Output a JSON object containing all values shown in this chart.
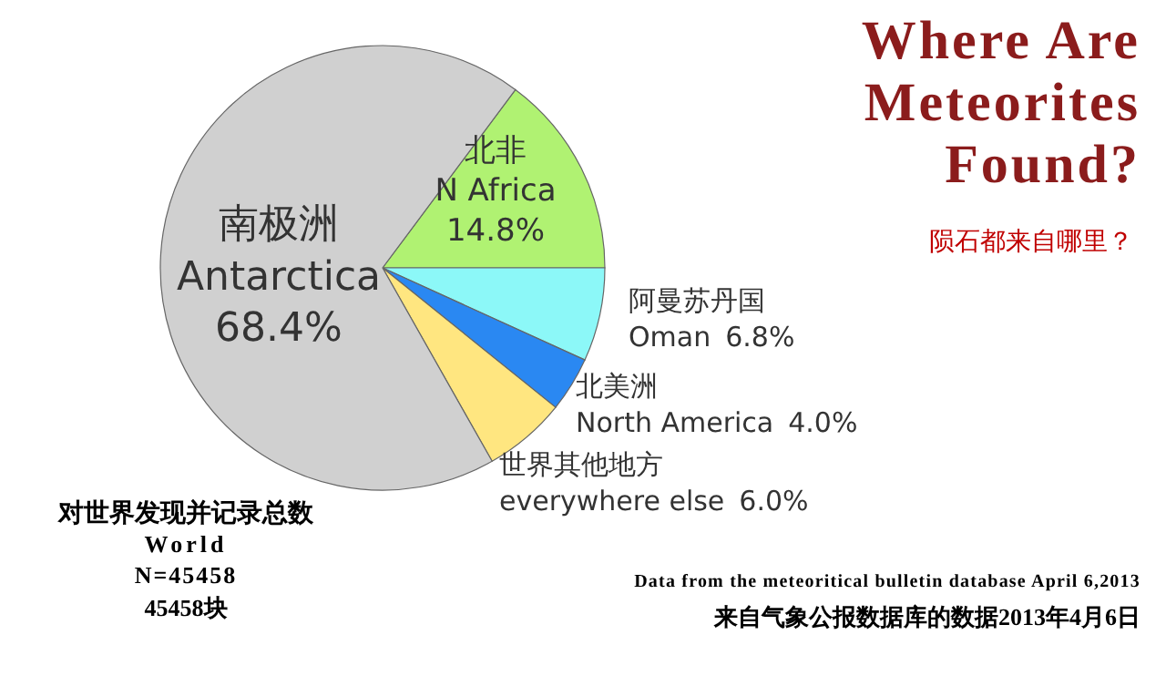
{
  "chart_data": {
    "type": "pie",
    "title": "Where Are Meteorites Found?",
    "subtitle": "陨石都来自哪里？",
    "categories": [
      "北非 N Africa",
      "阿曼苏丹国 Oman",
      "北美洲 North America",
      "世界其他地方 everywhere else",
      "南极洲 Antarctica"
    ],
    "values": [
      14.8,
      6.8,
      4.0,
      6.0,
      68.4
    ],
    "value_labels": [
      "14.8%",
      "6.8%",
      "4.0%",
      "6.0%",
      "68.4%"
    ],
    "colors": [
      "#b0f272",
      "#8cf8f8",
      "#2a88f2",
      "#ffe680",
      "#d0d0d0"
    ],
    "annotations": [
      "对世界发现并记录总数",
      "World",
      "N=45458",
      "45458块",
      "Data from the meteoritical bulletin database April 6,2013",
      "来自气象公报数据库的数据2013年4月6日"
    ]
  }
}
